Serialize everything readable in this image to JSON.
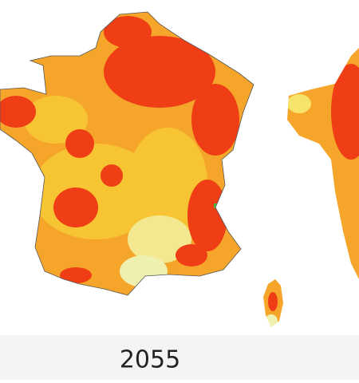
{
  "map": {
    "label": "2055"
  }
}
